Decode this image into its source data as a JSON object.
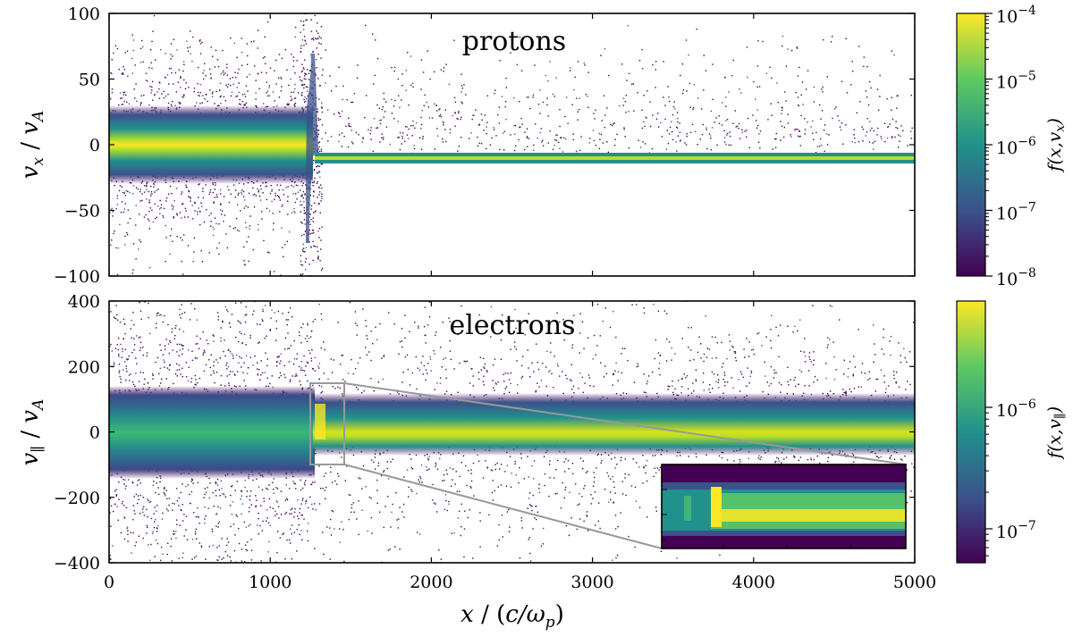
{
  "chart_data": [
    {
      "type": "heatmap",
      "title": "protons",
      "xlabel": "x / (c/ω_p)",
      "ylabel": "v_x / v_A",
      "xlim": [
        0,
        5000
      ],
      "ylim": [
        -100,
        100
      ],
      "x_ticks": [
        0,
        1000,
        2000,
        3000,
        4000,
        5000
      ],
      "y_ticks": [
        100,
        50,
        0,
        -50,
        -100
      ],
      "y_tick_labels": [
        "100",
        "50",
        "0",
        "−50",
        "−100"
      ],
      "colorbar": {
        "label": "f(x,v_x)",
        "scale": "log",
        "range": [
          1e-08,
          0.0001
        ],
        "tick_labels": [
          "10^−4",
          "10^−5",
          "10^−6",
          "10^−7",
          "10^−8"
        ]
      },
      "shock_x": 1250,
      "upstream_beam": {
        "x_start": 1250,
        "x_end": 5000,
        "v_center": -10
      }
    },
    {
      "type": "heatmap",
      "title": "electrons",
      "xlabel": "x / (c/ω_p)",
      "ylabel": "v_∥ / v_A",
      "xlim": [
        0,
        5000
      ],
      "ylim": [
        -400,
        400
      ],
      "x_ticks": [
        0,
        1000,
        2000,
        3000,
        4000,
        5000
      ],
      "x_tick_labels": [
        "0",
        "1000",
        "2000",
        "3000",
        "4000",
        "5000"
      ],
      "y_ticks": [
        400,
        200,
        0,
        -200,
        -400
      ],
      "y_tick_labels": [
        "400",
        "200",
        "0",
        "−200",
        "−400"
      ],
      "colorbar": {
        "label": "f(x,v_∥)",
        "scale": "log",
        "tick_labels": [
          "10^−6",
          "10^−7"
        ]
      },
      "zoom_box": {
        "x_range": [
          1250,
          1450
        ],
        "v_range": [
          -100,
          150
        ]
      }
    }
  ],
  "colors": {
    "viridis": [
      "#440154",
      "#3b528b",
      "#21918c",
      "#5ec962",
      "#fde725"
    ],
    "zoom_box": "#999999"
  }
}
